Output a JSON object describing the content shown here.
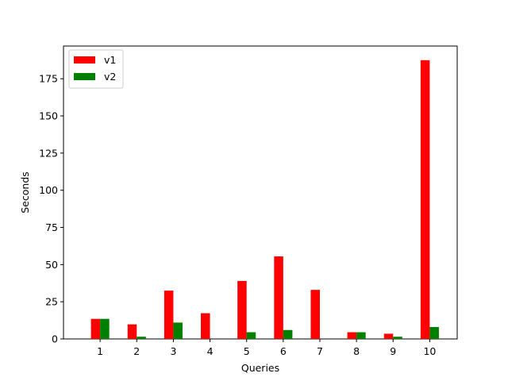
{
  "chart_data": {
    "type": "bar",
    "title": "",
    "xlabel": "Queries",
    "ylabel": "Seconds",
    "categories": [
      "1",
      "2",
      "3",
      "4",
      "5",
      "6",
      "7",
      "8",
      "9",
      "10"
    ],
    "series": [
      {
        "name": "v1",
        "color": "#ff0000",
        "values": [
          13.5,
          9.8,
          32.5,
          17.3,
          39.0,
          55.5,
          33.0,
          4.5,
          3.5,
          187.5
        ]
      },
      {
        "name": "v2",
        "color": "#008000",
        "values": [
          13.5,
          1.5,
          11.0,
          0,
          4.5,
          6.0,
          0,
          4.5,
          1.5,
          8.0
        ]
      }
    ],
    "ylim": [
      0,
      197
    ],
    "yticks": [
      0,
      25,
      50,
      75,
      100,
      125,
      150,
      175
    ],
    "grid": false,
    "legend": "upper-left"
  }
}
